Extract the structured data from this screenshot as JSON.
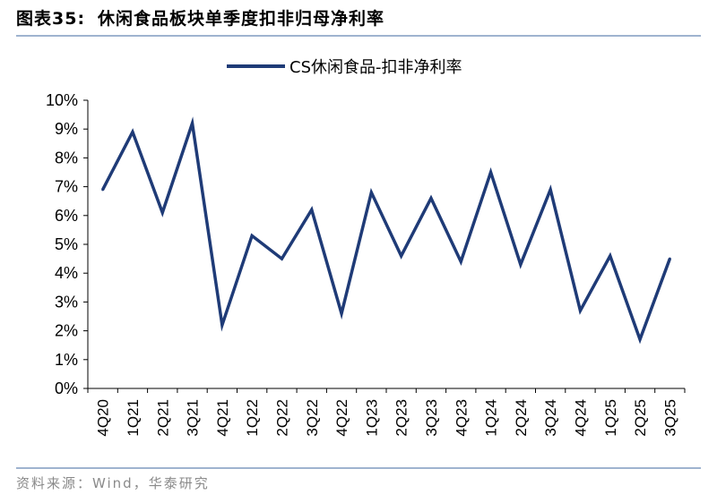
{
  "header": {
    "figure_no": "图表35:",
    "title": "休闲食品板块单季度扣非归母净利率"
  },
  "source": "资料来源：Wind，华泰研究",
  "colors": {
    "line": "#1f3b77",
    "axis": "#000000",
    "rule": "#9fb3cf",
    "source_text": "#8a8a8a"
  },
  "chart_data": {
    "type": "line",
    "title": "休闲食品板块单季度扣非归母净利率",
    "categories": [
      "4Q20",
      "1Q21",
      "2Q21",
      "3Q21",
      "4Q21",
      "1Q22",
      "2Q22",
      "3Q22",
      "4Q22",
      "1Q23",
      "2Q23",
      "3Q23",
      "4Q23",
      "1Q24",
      "2Q24",
      "3Q24",
      "4Q24",
      "1Q25",
      "2Q25",
      "3Q25"
    ],
    "series": [
      {
        "name": "CS休闲食品-扣非净利率",
        "values": [
          6.9,
          8.9,
          6.1,
          9.2,
          2.2,
          5.3,
          4.5,
          6.2,
          2.6,
          6.8,
          4.6,
          6.6,
          4.4,
          7.5,
          4.3,
          6.9,
          2.7,
          4.6,
          1.7,
          4.5
        ]
      }
    ],
    "yticks": [
      "0%",
      "1%",
      "2%",
      "3%",
      "4%",
      "5%",
      "6%",
      "7%",
      "8%",
      "9%",
      "10%"
    ],
    "ylim": [
      0,
      10
    ],
    "ylabel": "",
    "xlabel": "",
    "grid": false,
    "legend_position": "top-center"
  }
}
